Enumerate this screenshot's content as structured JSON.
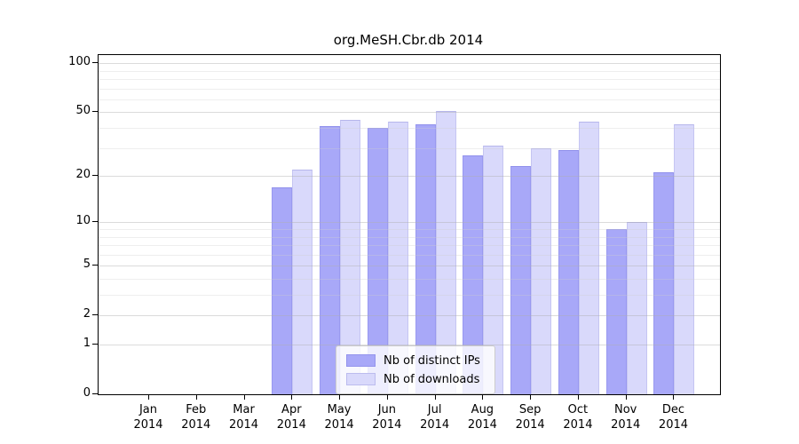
{
  "title": "org.MeSH.Cbr.db 2014",
  "colors": {
    "distinct_ips": "#a8a8f8",
    "downloads": "#d9d9fb",
    "axis": "#000000",
    "legend_border": "#cccccc"
  },
  "legend": {
    "items": [
      {
        "label": "Nb of distinct IPs",
        "color_key": "distinct_ips"
      },
      {
        "label": "Nb of downloads",
        "color_key": "downloads"
      }
    ]
  },
  "chart_data": {
    "type": "bar",
    "title": "org.MeSH.Cbr.db 2014",
    "categories": [
      "Jan 2014",
      "Feb 2014",
      "Mar 2014",
      "Apr 2014",
      "May 2014",
      "Jun 2014",
      "Jul 2014",
      "Aug 2014",
      "Sep 2014",
      "Oct 2014",
      "Nov 2014",
      "Dec 2014"
    ],
    "months": [
      "Jan",
      "Feb",
      "Mar",
      "Apr",
      "May",
      "Jun",
      "Jul",
      "Aug",
      "Sep",
      "Oct",
      "Nov",
      "Dec"
    ],
    "year": "2014",
    "series": [
      {
        "name": "Nb of distinct IPs",
        "color_key": "distinct_ips",
        "values": [
          0,
          0,
          0,
          17,
          41,
          40,
          42,
          27,
          23,
          29,
          9,
          21
        ]
      },
      {
        "name": "Nb of downloads",
        "color_key": "downloads",
        "values": [
          0,
          0,
          0,
          22,
          45,
          44,
          51,
          31,
          30,
          44,
          10,
          42
        ]
      }
    ],
    "xlabel": "",
    "ylabel": "",
    "yscale": "log1p",
    "y_ticks": [
      0,
      1,
      2,
      5,
      10,
      20,
      50,
      100
    ],
    "y_minor_grid": [
      1,
      2,
      3,
      4,
      5,
      6,
      7,
      8,
      9,
      10,
      20,
      30,
      40,
      50,
      60,
      70,
      80,
      90,
      100
    ],
    "ylim": [
      0,
      113
    ],
    "grid": true,
    "legend_position": "lower center"
  }
}
